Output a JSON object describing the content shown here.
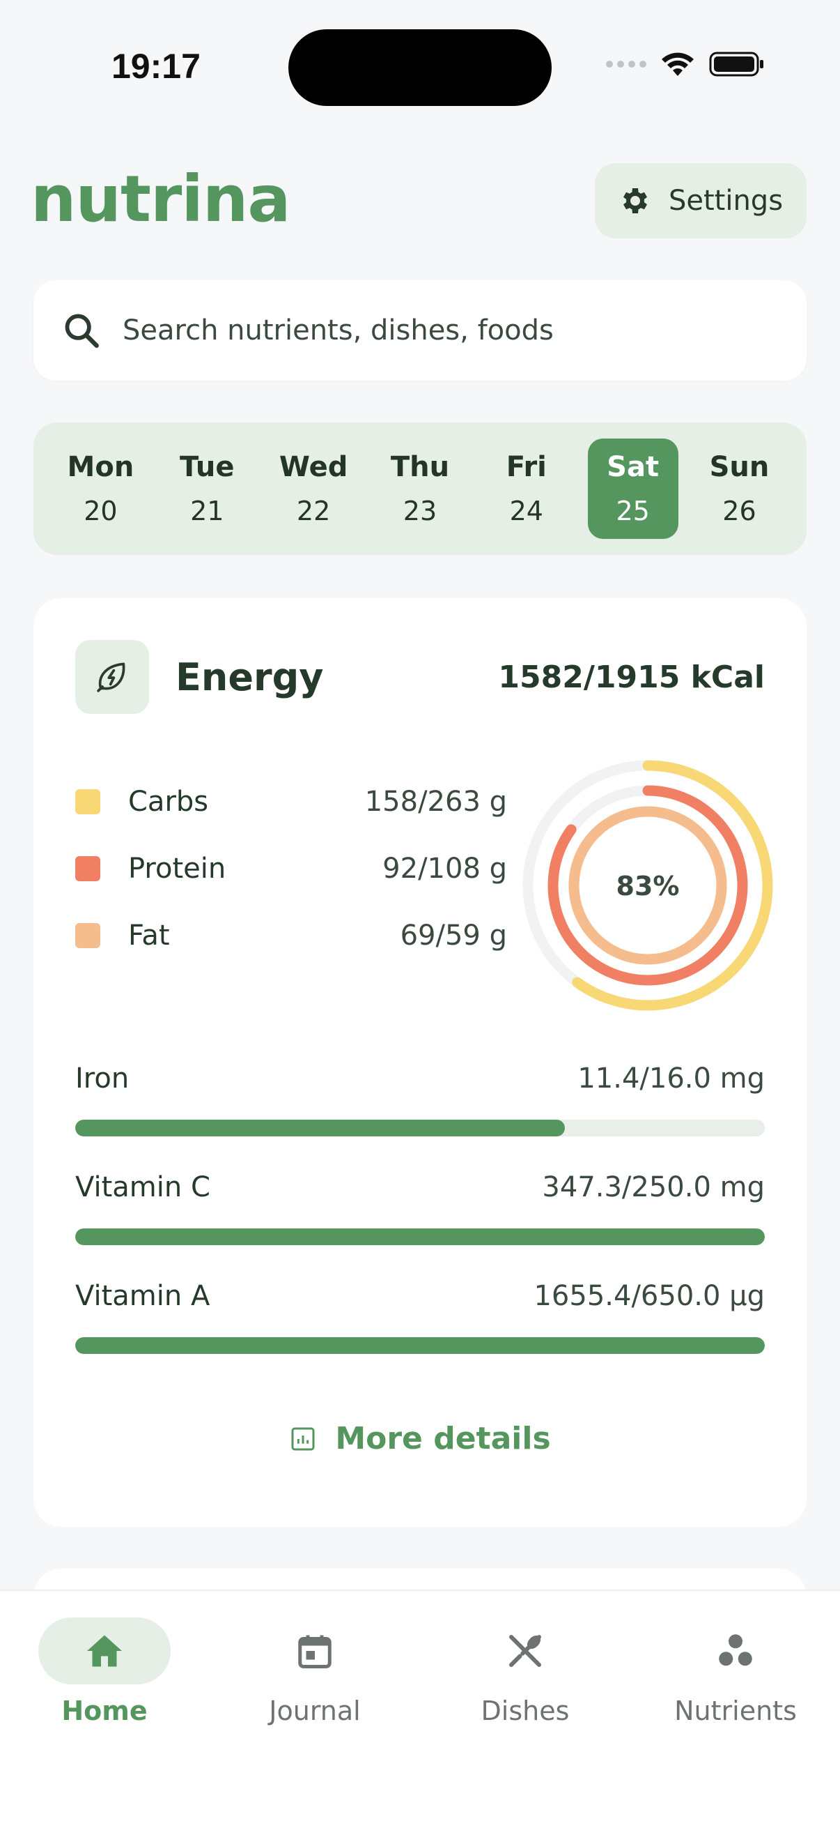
{
  "status_bar": {
    "time": "19:17"
  },
  "header": {
    "logo": "nutrina",
    "settings_label": "Settings"
  },
  "search": {
    "placeholder": "Search nutrients, dishes, foods"
  },
  "week": [
    {
      "name": "Mon",
      "num": "20",
      "active": false
    },
    {
      "name": "Tue",
      "num": "21",
      "active": false
    },
    {
      "name": "Wed",
      "num": "22",
      "active": false
    },
    {
      "name": "Thu",
      "num": "23",
      "active": false
    },
    {
      "name": "Fri",
      "num": "24",
      "active": false
    },
    {
      "name": "Sat",
      "num": "25",
      "active": true
    },
    {
      "name": "Sun",
      "num": "26",
      "active": false
    }
  ],
  "energy": {
    "title": "Energy",
    "value": "1582/1915 kCal",
    "percent_label": "83%",
    "macros": [
      {
        "label": "Carbs",
        "value": "158/263 g",
        "color": "#f8d874",
        "fraction": 0.6
      },
      {
        "label": "Protein",
        "value": "92/108 g",
        "color": "#f07f63",
        "fraction": 0.85
      },
      {
        "label": "Fat",
        "value": "69/59 g",
        "color": "#f5bd8d",
        "fraction": 1.17
      }
    ],
    "nutrients": [
      {
        "label": "Iron",
        "value": "11.4/16.0 mg",
        "progress": 0.71
      },
      {
        "label": "Vitamin C",
        "value": "347.3/250.0 mg",
        "progress": 1.0
      },
      {
        "label": "Vitamin A",
        "value": "1655.4/650.0 µg",
        "progress": 1.0
      }
    ],
    "more_label": "More details"
  },
  "nav": [
    {
      "label": "Home",
      "icon": "home-icon",
      "active": true
    },
    {
      "label": "Journal",
      "icon": "calendar-icon",
      "active": false
    },
    {
      "label": "Dishes",
      "icon": "fork-knife-icon",
      "active": false
    },
    {
      "label": "Nutrients",
      "icon": "nutrients-icon",
      "active": false
    }
  ],
  "colors": {
    "accent": "#55965f",
    "accent_light": "#e6efe6"
  }
}
